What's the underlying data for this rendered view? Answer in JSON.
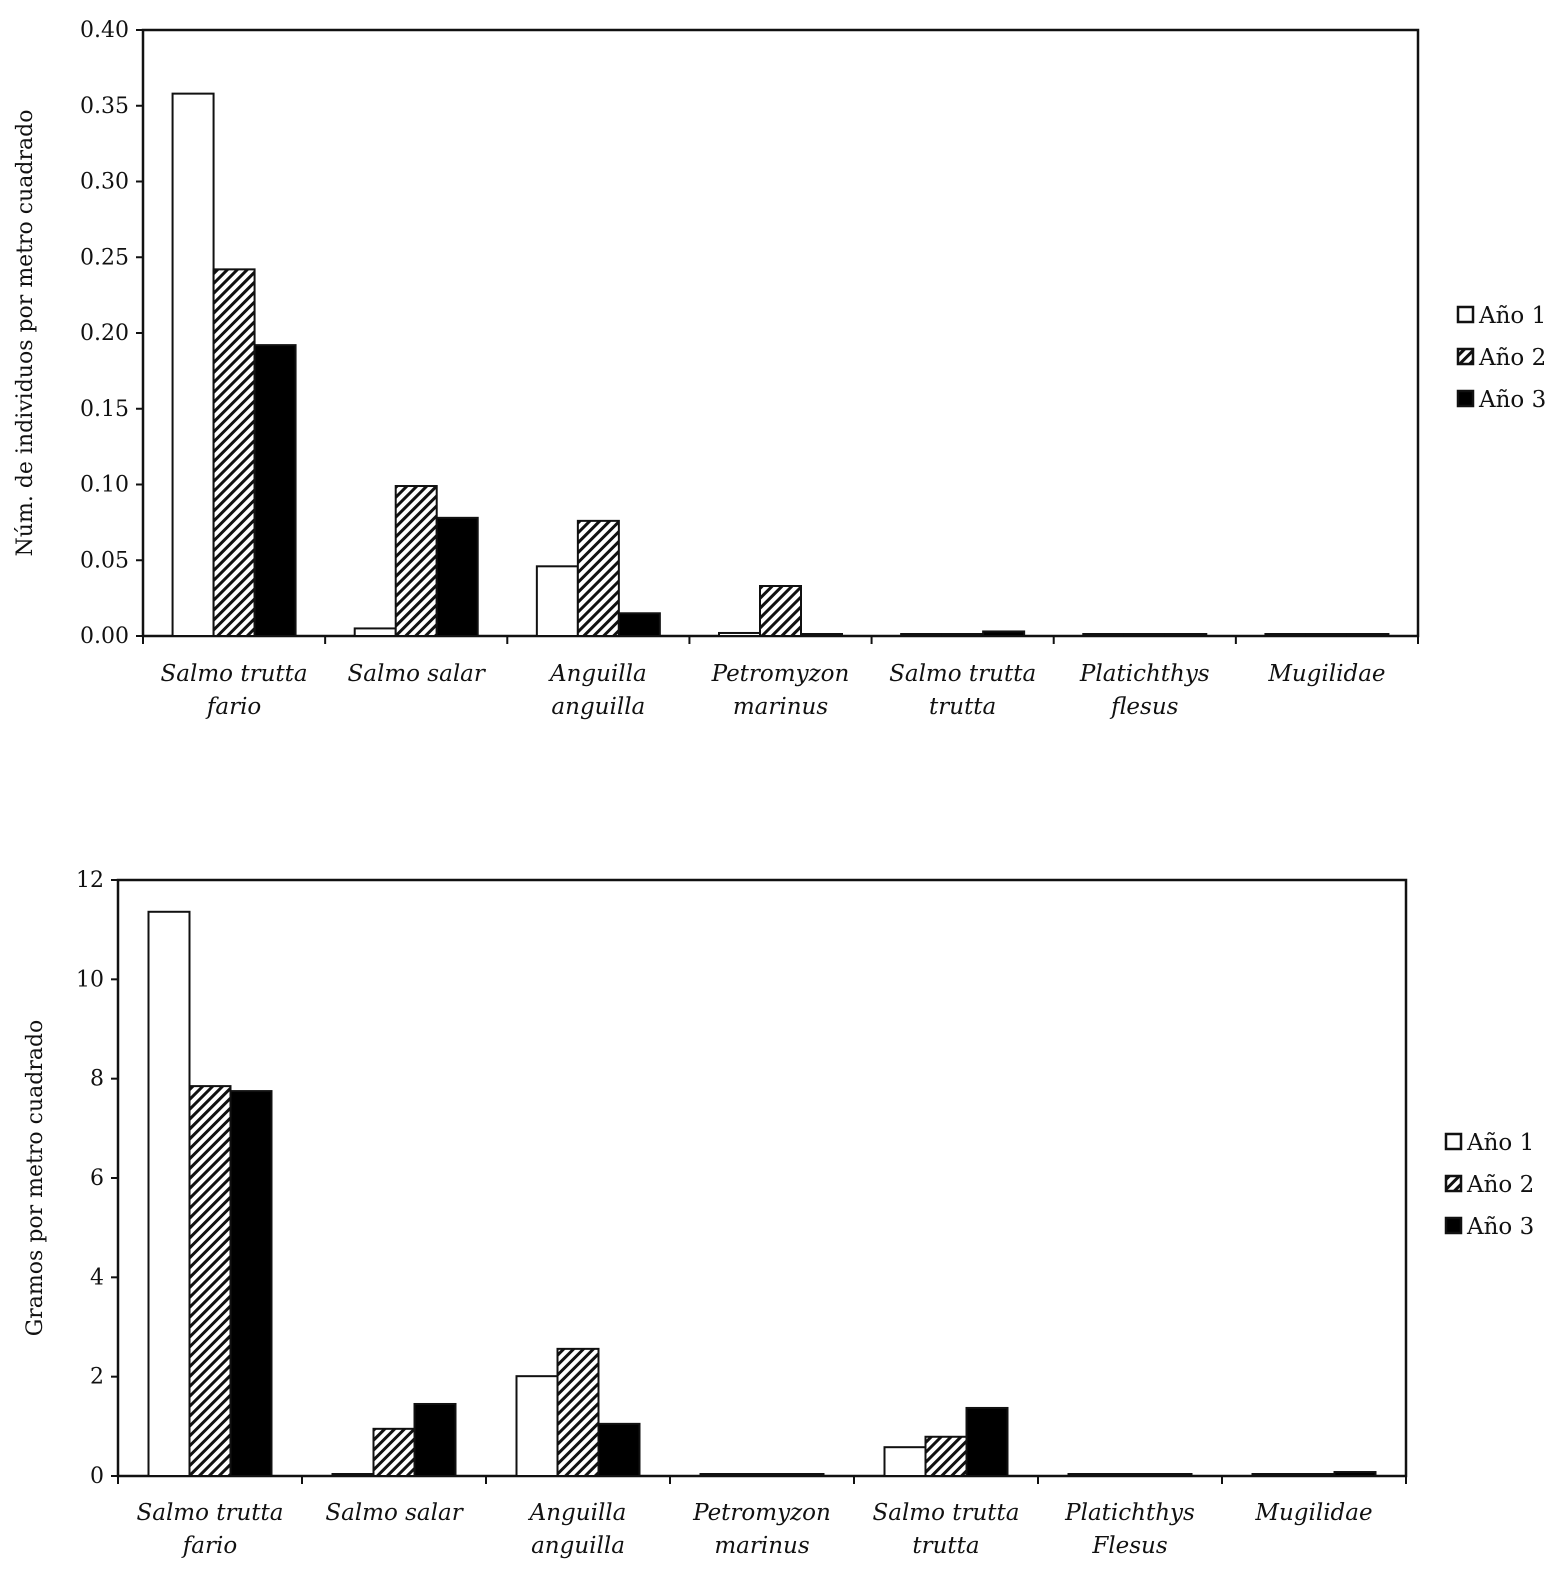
{
  "chart_data": [
    {
      "type": "bar",
      "title": "",
      "xlabel": "",
      "ylabel": "Núm. de individuos por metro cuadrado",
      "ylim": [
        0,
        0.4
      ],
      "yticks": [
        "0.00",
        "0.05",
        "0.10",
        "0.15",
        "0.20",
        "0.25",
        "0.30",
        "0.35",
        "0.40"
      ],
      "categories": [
        [
          "Salmo trutta",
          "fario"
        ],
        [
          "Salmo salar"
        ],
        [
          "Anguilla",
          "anguilla"
        ],
        [
          "Petromyzon",
          "marinus"
        ],
        [
          "Salmo trutta",
          "trutta"
        ],
        [
          "Platichthys",
          "flesus"
        ],
        [
          "Mugilidae"
        ]
      ],
      "series": [
        {
          "name": "Año 1",
          "values": [
            0.358,
            0.005,
            0.046,
            0.002,
            0.001,
            0.001,
            0.0005
          ]
        },
        {
          "name": "Año 2",
          "values": [
            0.242,
            0.099,
            0.076,
            0.033,
            0.0,
            0.0,
            0.0
          ]
        },
        {
          "name": "Año 3",
          "values": [
            0.192,
            0.078,
            0.015,
            0.001,
            0.003,
            0.001,
            0.0005
          ]
        }
      ],
      "legend": "right",
      "grid": false
    },
    {
      "type": "bar",
      "title": "",
      "xlabel": "",
      "ylabel": "Gramos por metro cuadrado",
      "ylim": [
        0,
        12
      ],
      "yticks": [
        "0",
        "2",
        "4",
        "6",
        "8",
        "10",
        "12"
      ],
      "categories": [
        [
          "Salmo trutta",
          "fario"
        ],
        [
          "Salmo salar"
        ],
        [
          "Anguilla",
          "anguilla"
        ],
        [
          "Petromyzon",
          "marinus"
        ],
        [
          "Salmo trutta",
          "trutta"
        ],
        [
          "Platichthys",
          "Flesus"
        ],
        [
          "Mugilidae"
        ]
      ],
      "series": [
        {
          "name": "Año 1",
          "values": [
            11.36,
            0.03,
            2.01,
            0.02,
            0.58,
            0.02,
            0.02
          ]
        },
        {
          "name": "Año 2",
          "values": [
            7.85,
            0.95,
            2.56,
            0.0,
            0.79,
            0.0,
            0.0
          ]
        },
        {
          "name": "Año 3",
          "values": [
            7.75,
            1.45,
            1.05,
            0.02,
            1.37,
            0.02,
            0.08
          ]
        }
      ],
      "legend": "right",
      "grid": false
    }
  ]
}
